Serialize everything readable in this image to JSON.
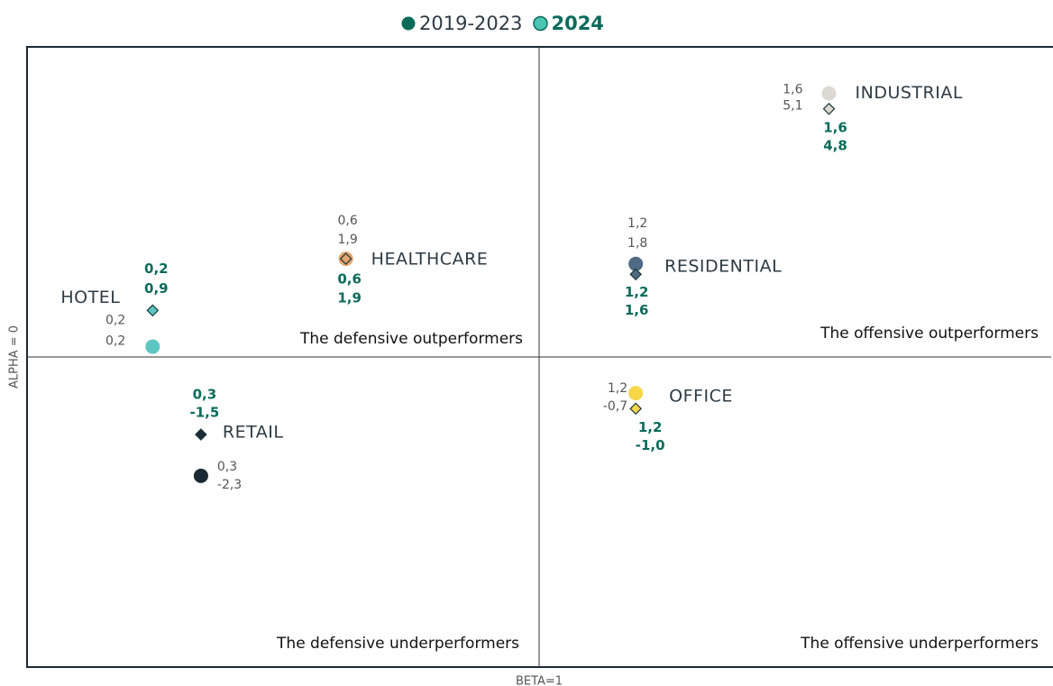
{
  "chart_data": {
    "type": "scatter",
    "categories": [
      "INDUSTRIAL",
      "HEALTHCARE",
      "RESIDENTIAL",
      "HOTEL",
      "OFFICE",
      "RETAIL"
    ],
    "point_colors": [
      "#dcd9d2",
      "#e3a46e",
      "#4f6a82",
      "#5ec6c2",
      "#f7d64a",
      "#1c2a33"
    ],
    "series": [
      {
        "name": "2019-2023",
        "color": "#0a6b5b",
        "marker": "circle",
        "x": [
          1.6,
          0.6,
          1.2,
          0.2,
          1.2,
          0.3
        ],
        "x_labels": [
          "1,6",
          "0,6",
          "1,2",
          "0,2",
          "1,2",
          "0,3"
        ],
        "values": [
          5.1,
          1.9,
          1.8,
          0.2,
          -0.7,
          -2.3
        ],
        "value_labels": [
          "5,1",
          "1,9",
          "1,8",
          "0,2",
          "-0,7",
          "-2,3"
        ]
      },
      {
        "name": "2024",
        "color": "#4cc4b4",
        "marker": "diamond",
        "x": [
          1.6,
          0.6,
          1.2,
          0.2,
          1.2,
          0.3
        ],
        "x_labels": [
          "1,6",
          "0,6",
          "1,2",
          "0,2",
          "1,2",
          "0,3"
        ],
        "values": [
          4.8,
          1.9,
          1.6,
          0.9,
          -1.0,
          -1.5
        ],
        "value_labels": [
          "4,8",
          "1,9",
          "1,6",
          "0,9",
          "-1,0",
          "-1,5"
        ]
      }
    ],
    "xlim": [
      -0.06,
      2.06
    ],
    "ylim": [
      -6,
      6
    ],
    "xref": {
      "value": 1,
      "label": "BETA=1"
    },
    "yref": {
      "value": 0,
      "label": "ALPHA = 0"
    },
    "annotations": [
      "The defensive outperformers",
      "The offensive outperformers",
      "The defensive underperformers",
      "The offensive underperformers"
    ]
  }
}
